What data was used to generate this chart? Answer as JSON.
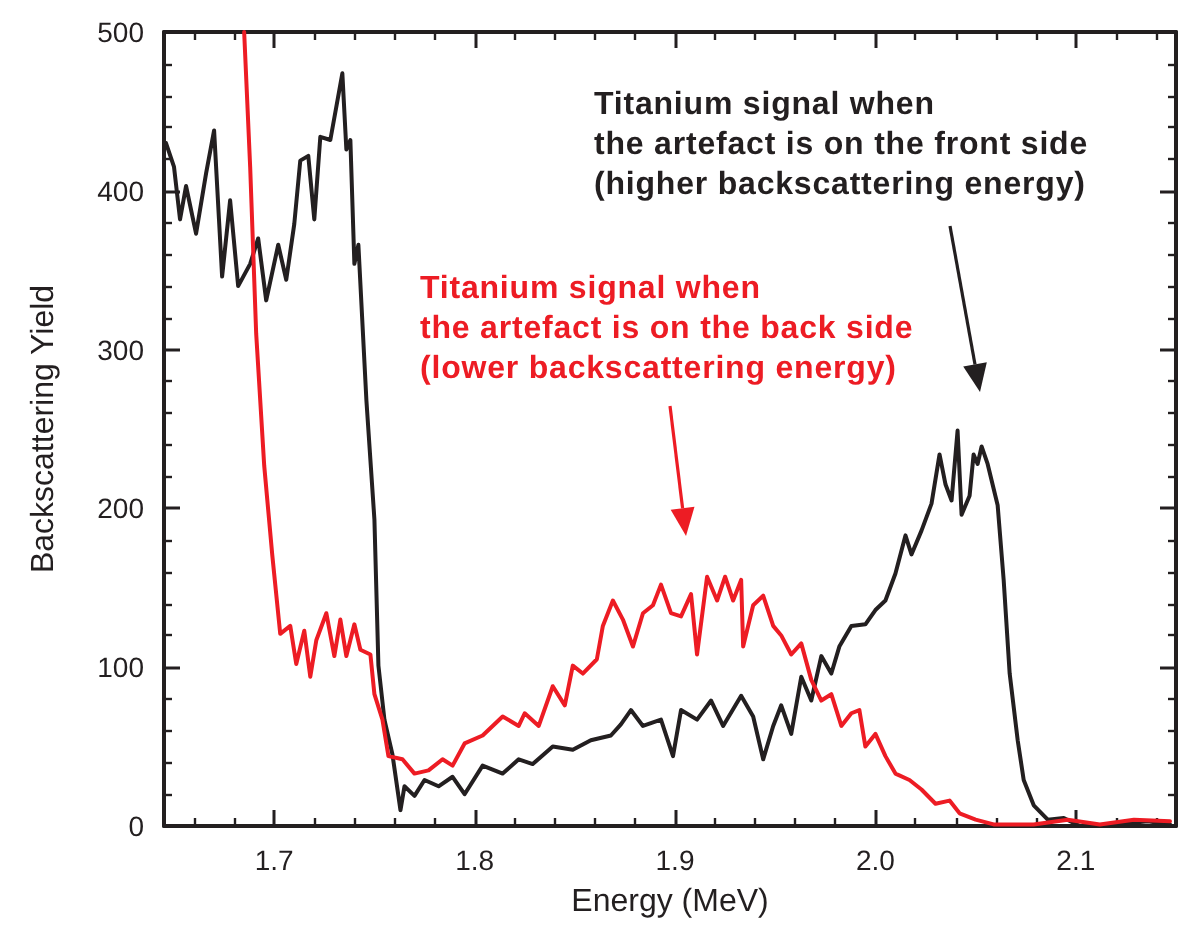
{
  "chart_data": {
    "type": "line",
    "xlabel": "Energy (MeV)",
    "ylabel": "Backscattering Yield",
    "xlim": [
      1.645,
      2.15
    ],
    "ylim": [
      0,
      500
    ],
    "xticks": [
      1.7,
      1.8,
      1.9,
      {
        "value": 2.0,
        "label": "2.0"
      },
      2.1
    ],
    "yticks": [
      0,
      100,
      200,
      300,
      400,
      500
    ],
    "grid": false,
    "marker": "none",
    "line_style": "solid",
    "annotations": [
      "Titanium signal when\nthe artefact is on the front side\n(higher backscattering energy)",
      "Titanium signal when\nthe artefact is on the back side\n(lower backscattering energy)"
    ],
    "series": [
      {
        "color": "#231f20",
        "x": [
          1.646,
          1.65,
          1.653,
          1.656,
          1.661,
          1.666,
          1.67,
          1.674,
          1.678,
          1.682,
          1.688,
          1.692,
          1.696,
          1.702,
          1.706,
          1.71,
          1.713,
          1.717,
          1.72,
          1.723,
          1.728,
          1.734,
          1.736,
          1.738,
          1.74,
          1.742,
          1.746,
          1.75,
          1.752,
          1.755,
          1.759,
          1.763,
          1.765,
          1.77,
          1.775,
          1.782,
          1.789,
          1.795,
          1.804,
          1.814,
          1.822,
          1.829,
          1.839,
          1.849,
          1.858,
          1.868,
          1.873,
          1.878,
          1.884,
          1.893,
          1.899,
          1.903,
          1.911,
          1.918,
          1.924,
          1.933,
          1.939,
          1.944,
          1.949,
          1.953,
          1.958,
          1.963,
          1.968,
          1.973,
          1.978,
          1.982,
          1.988,
          1.995,
          2.0,
          2.005,
          2.01,
          2.015,
          2.018,
          2.023,
          2.028,
          2.032,
          2.035,
          2.038,
          2.041,
          2.043,
          2.047,
          2.049,
          2.051,
          2.053,
          2.056,
          2.061,
          2.064,
          2.067,
          2.071,
          2.074,
          2.079,
          2.086,
          2.094,
          2.102,
          2.119,
          2.136,
          2.147
        ],
        "values": [
          430,
          415,
          382,
          403,
          373,
          411,
          438,
          346,
          394,
          340,
          354,
          370,
          331,
          366,
          344,
          379,
          419,
          422,
          382,
          434,
          432,
          474,
          426,
          432,
          354,
          366,
          268,
          193,
          101,
          67,
          45,
          10,
          25,
          19,
          29,
          25,
          31,
          20,
          38,
          33,
          42,
          39,
          50,
          48,
          54,
          57,
          64,
          73,
          63,
          67,
          44,
          73,
          67,
          79,
          63,
          82,
          69,
          42,
          63,
          76,
          58,
          94,
          79,
          107,
          96,
          113,
          126,
          127,
          136,
          142,
          159,
          183,
          171,
          186,
          203,
          234,
          215,
          205,
          249,
          196,
          208,
          234,
          228,
          239,
          228,
          202,
          155,
          96,
          54,
          29,
          13,
          4,
          5,
          0,
          1,
          3,
          1
        ]
      },
      {
        "color": "#ed1c24",
        "x": [
          1.685,
          1.688,
          1.691,
          1.695,
          1.699,
          1.703,
          1.708,
          1.711,
          1.715,
          1.718,
          1.721,
          1.726,
          1.73,
          1.733,
          1.736,
          1.74,
          1.743,
          1.748,
          1.75,
          1.754,
          1.757,
          1.764,
          1.77,
          1.777,
          1.784,
          1.789,
          1.795,
          1.804,
          1.814,
          1.822,
          1.825,
          1.832,
          1.839,
          1.845,
          1.849,
          1.854,
          1.861,
          1.864,
          1.869,
          1.874,
          1.879,
          1.884,
          1.889,
          1.893,
          1.898,
          1.903,
          1.908,
          1.911,
          1.916,
          1.921,
          1.925,
          1.929,
          1.933,
          1.934,
          1.939,
          1.944,
          1.949,
          1.953,
          1.958,
          1.963,
          1.968,
          1.973,
          1.978,
          1.983,
          1.988,
          1.992,
          1.995,
          2.0,
          2.005,
          2.01,
          2.017,
          2.023,
          2.03,
          2.037,
          2.042,
          2.05,
          2.059,
          2.079,
          2.096,
          2.112,
          2.129,
          2.147
        ],
        "values": [
          500,
          415,
          310,
          227,
          171,
          121,
          126,
          102,
          123,
          94,
          117,
          134,
          107,
          130,
          107,
          127,
          111,
          108,
          83,
          67,
          44,
          42,
          33,
          35,
          42,
          38,
          52,
          57,
          69,
          63,
          71,
          63,
          88,
          76,
          101,
          96,
          105,
          126,
          142,
          130,
          113,
          134,
          139,
          152,
          134,
          132,
          146,
          108,
          157,
          142,
          157,
          142,
          155,
          113,
          139,
          145,
          126,
          120,
          108,
          115,
          92,
          79,
          83,
          63,
          71,
          73,
          50,
          58,
          44,
          33,
          29,
          23,
          14,
          16,
          8,
          4,
          1,
          1,
          4,
          1,
          4,
          3
        ]
      }
    ]
  }
}
